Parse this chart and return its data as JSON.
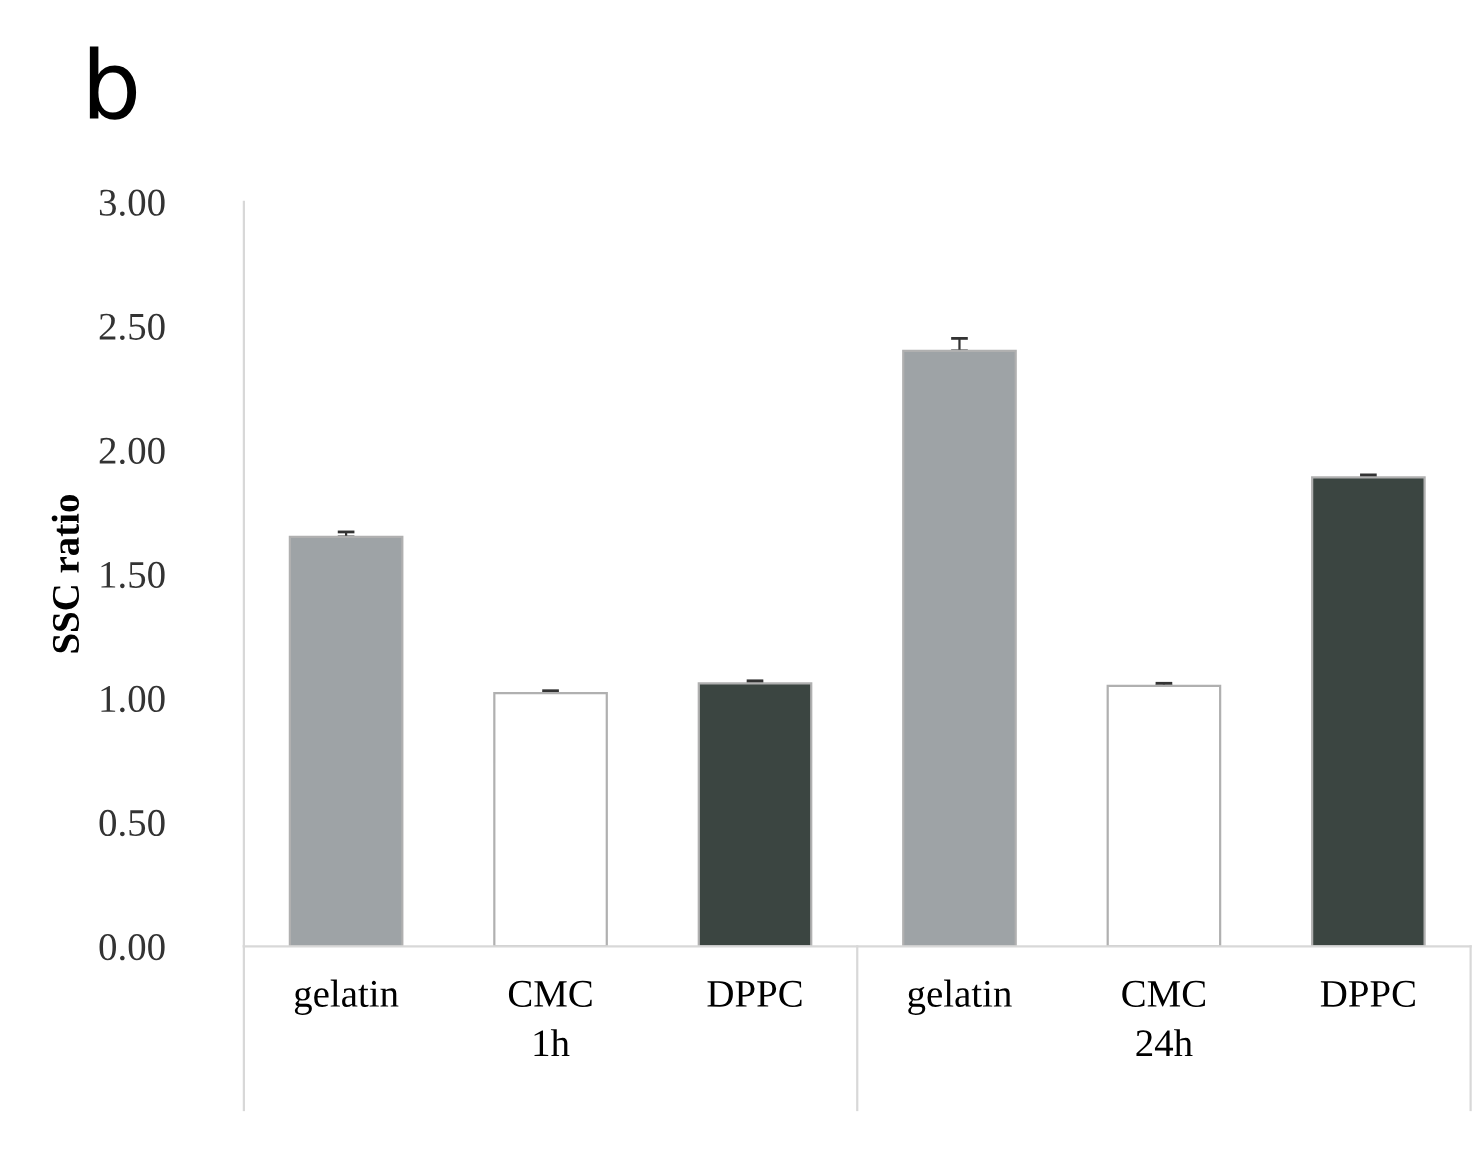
{
  "chart_data": {
    "type": "bar",
    "title": "b",
    "ylabel": "SSC ratio",
    "categories": [
      "gelatin",
      "CMC",
      "DPPC",
      "gelatin",
      "CMC",
      "DPPC"
    ],
    "values": [
      1.65,
      1.02,
      1.06,
      2.4,
      1.05,
      1.89
    ],
    "errors": [
      [
        1.65,
        1.67
      ],
      [
        1.02,
        1.03
      ],
      [
        1.06,
        1.07
      ],
      [
        2.4,
        2.45
      ],
      [
        1.05,
        1.06
      ],
      [
        1.89,
        1.9
      ]
    ],
    "colors": [
      "#9ea3a6",
      "#ffffff",
      "#3b4541",
      "#9ea3a6",
      "#ffffff",
      "#3b4541"
    ],
    "annotations": [
      "1h",
      "24h"
    ],
    "ylim": [
      0,
      3
    ],
    "yticks": [
      {
        "value": 0,
        "label": "0.00"
      },
      {
        "value": 0.5,
        "label": "0.50"
      },
      {
        "value": 1,
        "label": "1.00"
      },
      {
        "value": 1.5,
        "label": "1.50"
      },
      {
        "value": 2,
        "label": "2.00"
      },
      {
        "value": 2.5,
        "label": "2.50"
      },
      {
        "value": 3,
        "label": "3.00"
      }
    ],
    "grid": false,
    "legend": false
  }
}
